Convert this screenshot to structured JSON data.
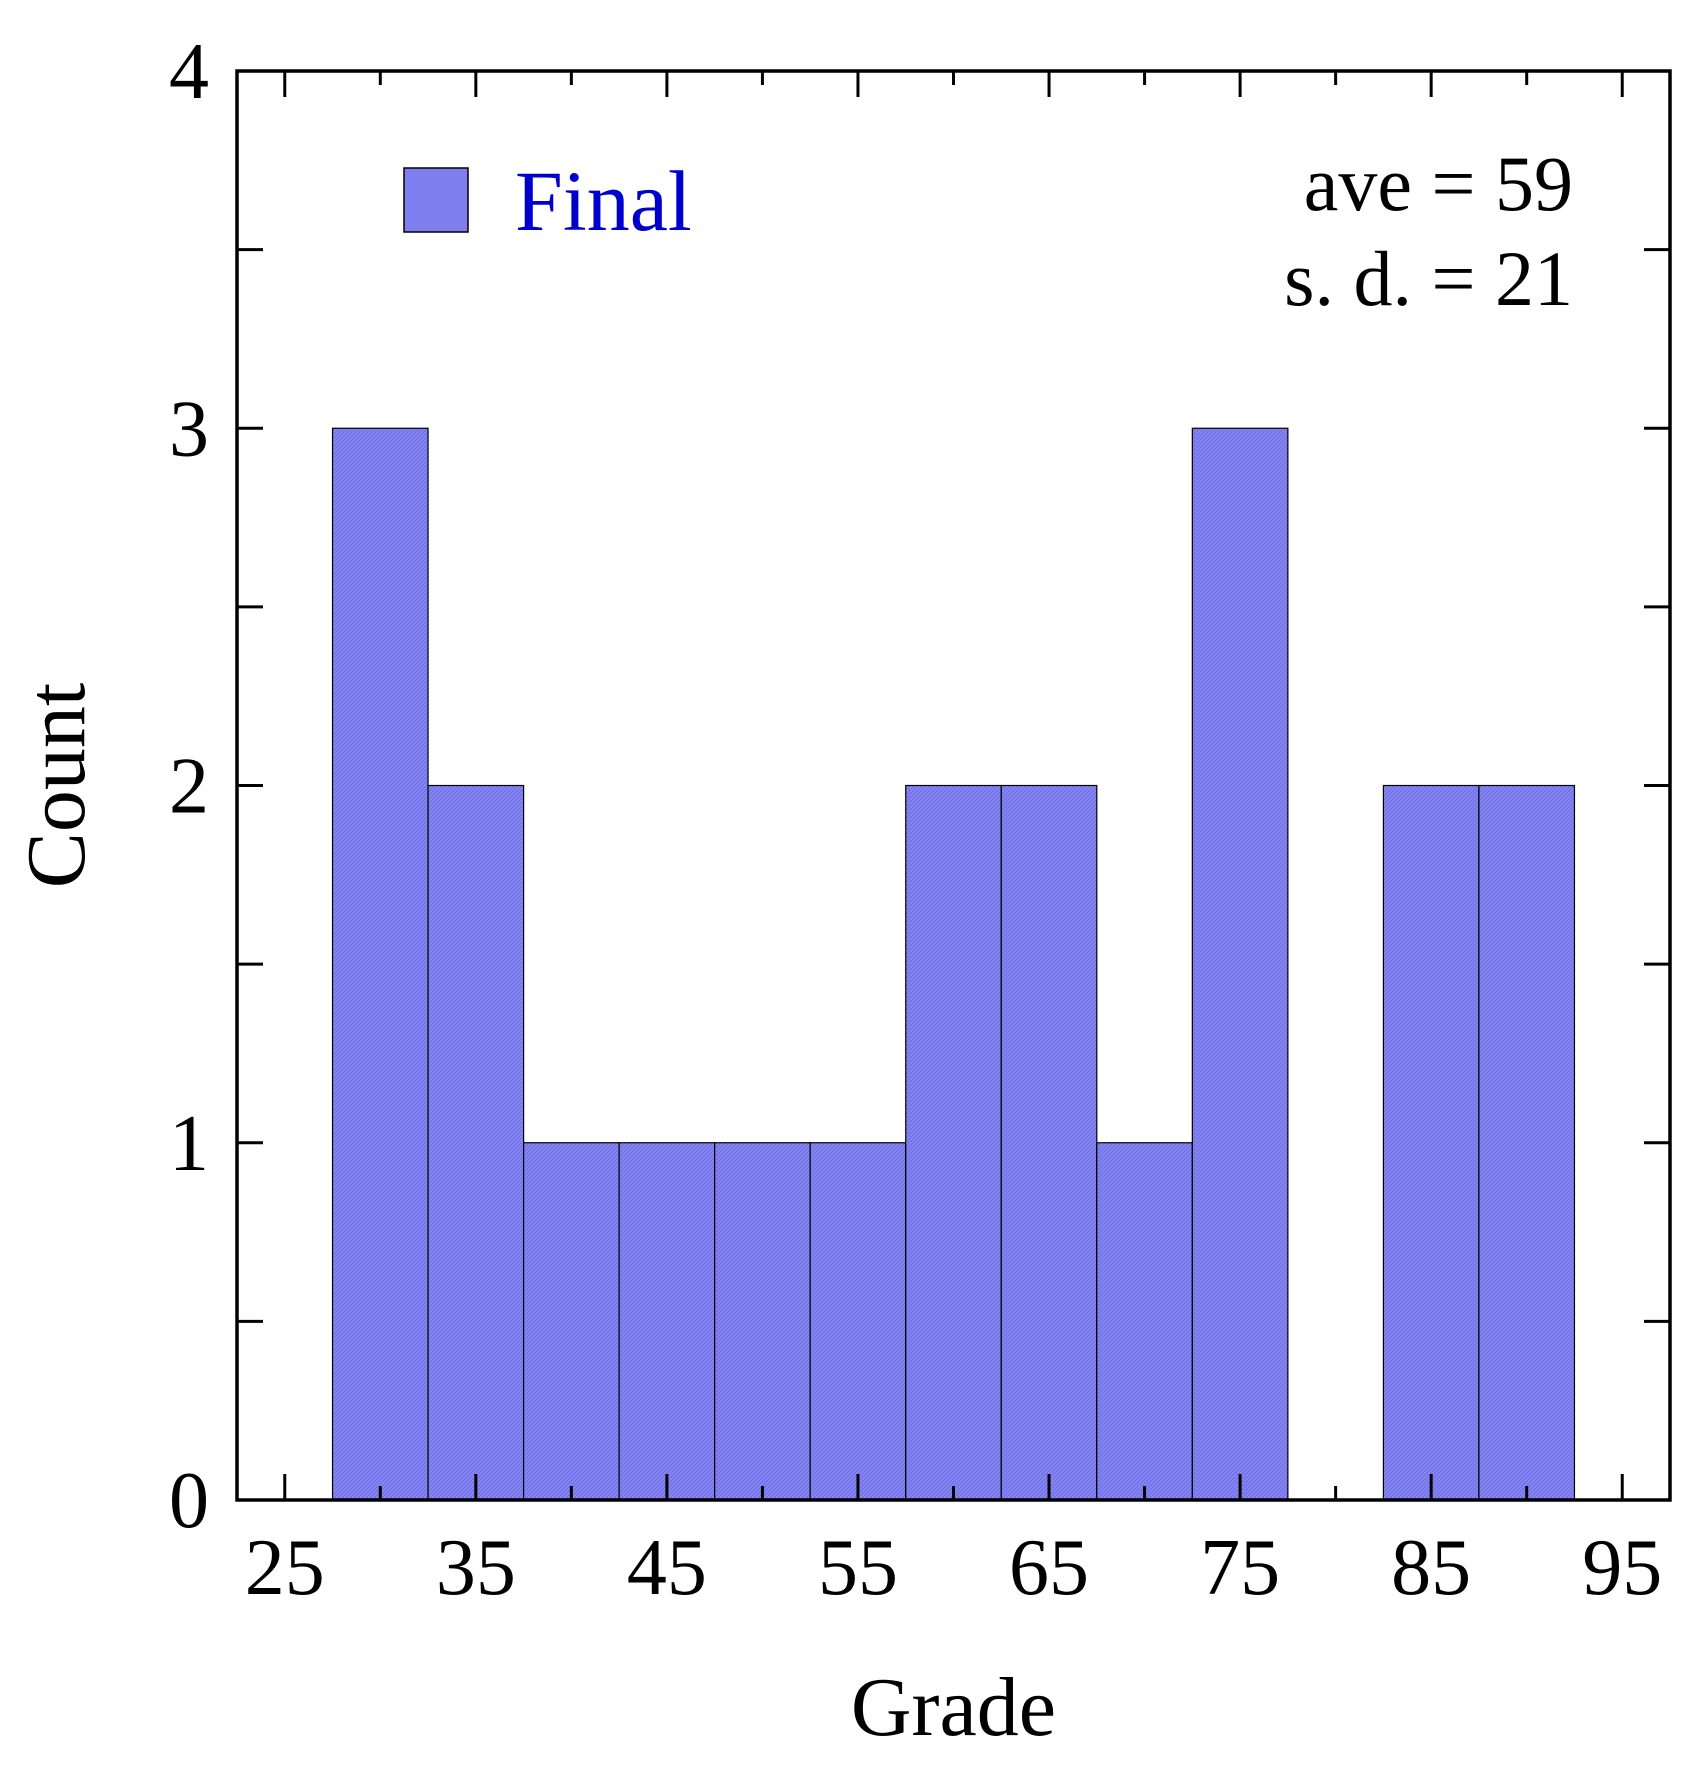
{
  "chart_data": {
    "type": "bar",
    "title": "",
    "xlabel": "Grade",
    "ylabel": "Count",
    "xlim": [
      22.5,
      97.5
    ],
    "ylim": [
      0,
      4
    ],
    "bin_width": 5,
    "bins": [
      {
        "start": 27.5,
        "end": 32.5,
        "count": 3
      },
      {
        "start": 32.5,
        "end": 37.5,
        "count": 2
      },
      {
        "start": 37.5,
        "end": 42.5,
        "count": 1
      },
      {
        "start": 42.5,
        "end": 47.5,
        "count": 1
      },
      {
        "start": 47.5,
        "end": 52.5,
        "count": 1
      },
      {
        "start": 52.5,
        "end": 57.5,
        "count": 1
      },
      {
        "start": 57.5,
        "end": 62.5,
        "count": 2
      },
      {
        "start": 62.5,
        "end": 67.5,
        "count": 2
      },
      {
        "start": 67.5,
        "end": 72.5,
        "count": 1
      },
      {
        "start": 72.5,
        "end": 77.5,
        "count": 3
      },
      {
        "start": 77.5,
        "end": 82.5,
        "count": 0
      },
      {
        "start": 82.5,
        "end": 87.5,
        "count": 2
      },
      {
        "start": 87.5,
        "end": 92.5,
        "count": 2
      }
    ],
    "x_ticks": [
      "25",
      "35",
      "45",
      "55",
      "65",
      "75",
      "85",
      "95"
    ],
    "y_ticks": [
      "0",
      "1",
      "2",
      "3",
      "4"
    ],
    "series": [
      {
        "name": "Final",
        "color": "#7f7ff0"
      }
    ],
    "legend": {
      "placement": "top-left",
      "label": "Final",
      "text_color": "#0000cc"
    },
    "annotations": [
      "ave = 59",
      "s. d. = 21"
    ],
    "grid": false
  }
}
